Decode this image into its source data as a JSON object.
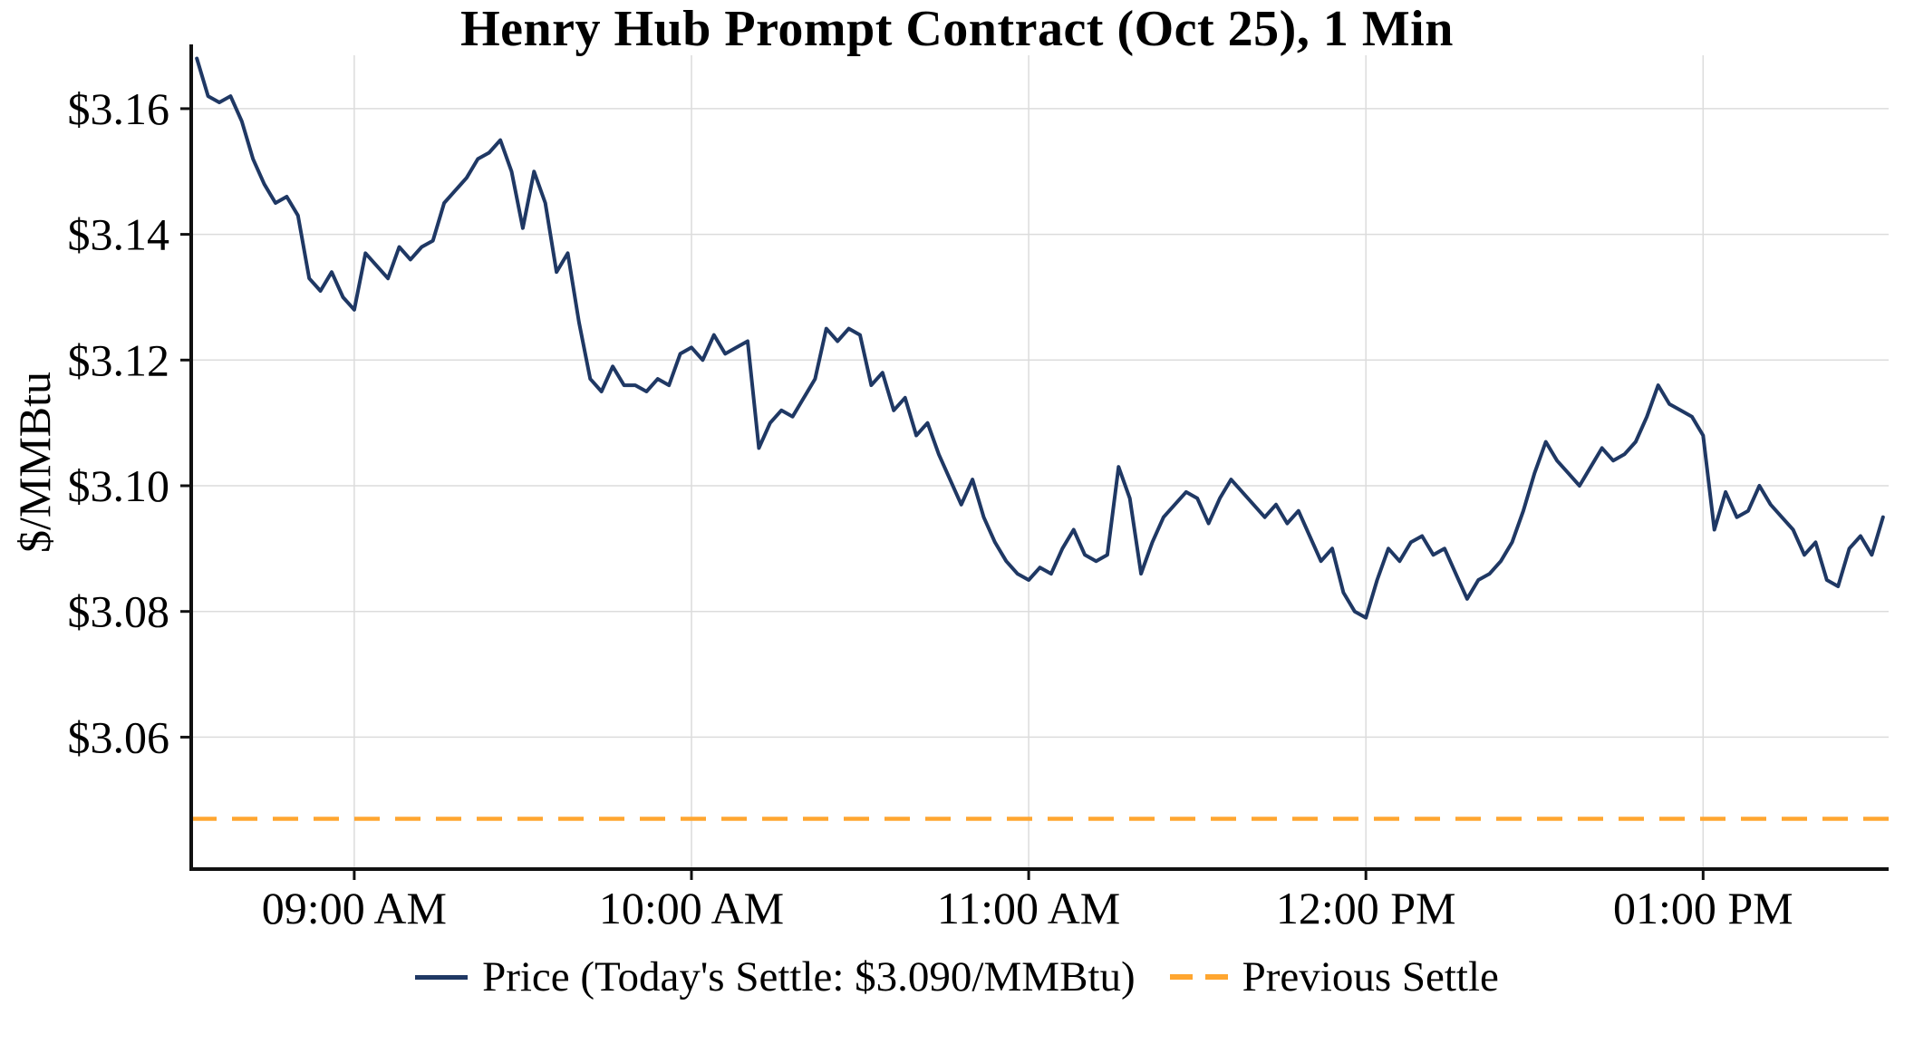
{
  "colors": {
    "background": "#ffffff",
    "price_line": "#1F3864",
    "previous_settle_line": "#FFA630",
    "grid": "#DCDCDC",
    "axis": "#111111",
    "text": "#000000"
  },
  "chart_data": {
    "type": "line",
    "title": "Henry Hub Prompt Contract (Oct 25), 1 Min",
    "xlabel": "",
    "ylabel": "$/MMBtu",
    "grid": true,
    "legend_position": "bottom-center",
    "today_settle_usd_per_mmbtu": 3.09,
    "previous_settle_usd_per_mmbtu": 3.047,
    "x_axis": {
      "unit": "minutes after 08:30 AM",
      "range": [
        1,
        303
      ],
      "ticks": [
        {
          "t": 30,
          "label": "09:00 AM"
        },
        {
          "t": 90,
          "label": "10:00 AM"
        },
        {
          "t": 150,
          "label": "11:00 AM"
        },
        {
          "t": 210,
          "label": "12:00 PM"
        },
        {
          "t": 270,
          "label": "01:00 PM"
        }
      ]
    },
    "y_axis": {
      "unit": "$/MMBtu",
      "range": [
        3.039,
        3.1685
      ],
      "ticks": [
        {
          "v": 3.06,
          "label": "$3.06"
        },
        {
          "v": 3.08,
          "label": "$3.08"
        },
        {
          "v": 3.1,
          "label": "$3.10"
        },
        {
          "v": 3.12,
          "label": "$3.12"
        },
        {
          "v": 3.14,
          "label": "$3.14"
        },
        {
          "v": 3.16,
          "label": "$3.16"
        }
      ]
    },
    "series": [
      {
        "name": "Price (Today's Settle: $3.090/MMBtu)",
        "type": "line",
        "style": "solid",
        "color": "#1F3864",
        "x_start_minutes": 2,
        "x_step_minutes": 2,
        "values": [
          3.168,
          3.162,
          3.161,
          3.162,
          3.158,
          3.152,
          3.148,
          3.145,
          3.146,
          3.143,
          3.133,
          3.131,
          3.134,
          3.13,
          3.128,
          3.137,
          3.135,
          3.133,
          3.138,
          3.136,
          3.138,
          3.139,
          3.145,
          3.147,
          3.149,
          3.152,
          3.153,
          3.155,
          3.15,
          3.141,
          3.15,
          3.145,
          3.134,
          3.137,
          3.126,
          3.117,
          3.115,
          3.119,
          3.116,
          3.116,
          3.115,
          3.117,
          3.116,
          3.121,
          3.122,
          3.12,
          3.124,
          3.121,
          3.122,
          3.123,
          3.106,
          3.11,
          3.112,
          3.111,
          3.114,
          3.117,
          3.125,
          3.123,
          3.125,
          3.124,
          3.116,
          3.118,
          3.112,
          3.114,
          3.108,
          3.11,
          3.105,
          3.101,
          3.097,
          3.101,
          3.095,
          3.091,
          3.088,
          3.086,
          3.085,
          3.087,
          3.086,
          3.09,
          3.093,
          3.089,
          3.088,
          3.089,
          3.103,
          3.098,
          3.086,
          3.091,
          3.095,
          3.097,
          3.099,
          3.098,
          3.094,
          3.098,
          3.101,
          3.099,
          3.097,
          3.095,
          3.097,
          3.094,
          3.096,
          3.092,
          3.088,
          3.09,
          3.083,
          3.08,
          3.079,
          3.085,
          3.09,
          3.088,
          3.091,
          3.092,
          3.089,
          3.09,
          3.086,
          3.082,
          3.085,
          3.086,
          3.088,
          3.091,
          3.096,
          3.102,
          3.107,
          3.104,
          3.102,
          3.1,
          3.103,
          3.106,
          3.104,
          3.105,
          3.107,
          3.111,
          3.116,
          3.113,
          3.112,
          3.111,
          3.108,
          3.093,
          3.099,
          3.095,
          3.096,
          3.1,
          3.097,
          3.095,
          3.093,
          3.089,
          3.091,
          3.085,
          3.084,
          3.09,
          3.092,
          3.089,
          3.095
        ]
      },
      {
        "name": "Previous Settle",
        "type": "hline",
        "style": "dashed",
        "color": "#FFA630",
        "value": 3.047
      }
    ]
  }
}
